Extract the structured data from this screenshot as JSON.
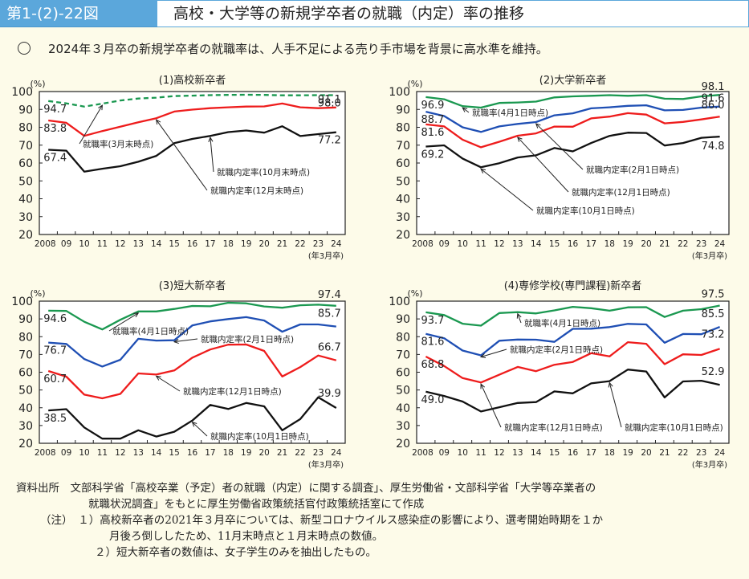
{
  "header": {
    "figure_number": "第1-(2)-22図",
    "title": "高校・大学等の新規学卒者の就職（内定）率の推移"
  },
  "lead": "2024年３月卒の新規学卒者の就職率は、人手不足による売り手市場を背景に高水準を維持。",
  "notes": {
    "source_label": "資料出所",
    "source_line1": "文部科学省「高校卒業（予定）者の就職（内定）に関する調査」、厚生労働省・文部科学省「大学等卒業者の",
    "source_line2": "就職状況調査」をもとに厚生労働省政策統括官付政策統括室にて作成",
    "note_label": "（注）",
    "note1_line1": "１）高校新卒者の2021年３月卒については、新型コロナウイルス感染症の影響により、選考開始時期を１か",
    "note1_line2": "月後ろ倒ししたため、11月末時点と１月末時点の数値。",
    "note2": "２）短大新卒者の数値は、女子学生のみを抽出したもの。"
  },
  "chart_data": [
    {
      "type": "line",
      "title": "(1)高校新卒者",
      "ylabel": "(%)",
      "xlabel": "(年3月卒)",
      "ylim": [
        20,
        100
      ],
      "yticks": [
        20,
        30,
        40,
        50,
        60,
        70,
        80,
        90,
        100
      ],
      "categories": [
        "2008",
        "09",
        "10",
        "11",
        "12",
        "13",
        "14",
        "15",
        "16",
        "17",
        "18",
        "19",
        "20",
        "21",
        "22",
        "23",
        "24"
      ],
      "series": [
        {
          "name": "就職率(3月末時点)",
          "color": "#1a9850",
          "dashed": true,
          "values": [
            94.7,
            93.4,
            91.6,
            93.2,
            95.0,
            96.1,
            96.6,
            97.5,
            97.7,
            98.0,
            98.1,
            98.2,
            98.1,
            97.9,
            97.9,
            98.0,
            98.0
          ],
          "start_label": "94.7",
          "end_label": "98.0"
        },
        {
          "name": "就職内定率(12月末時点)",
          "color": "#ee1c1c",
          "dashed": false,
          "values": [
            83.8,
            82.5,
            75.2,
            77.9,
            80.3,
            82.8,
            85.1,
            88.8,
            89.9,
            90.7,
            91.2,
            91.6,
            91.7,
            93.3,
            91.2,
            90.7,
            91.1
          ],
          "start_label": "83.8",
          "end_label": "91.1"
        },
        {
          "name": "就職内定率(10月末時点)",
          "color": "#111111",
          "dashed": false,
          "values": [
            67.4,
            66.9,
            55.2,
            56.8,
            58.2,
            60.7,
            64.0,
            71.1,
            73.5,
            75.2,
            77.3,
            78.2,
            77.0,
            80.6,
            75.1,
            76.2,
            77.2
          ],
          "start_label": "67.4",
          "end_label": "77.2"
        }
      ],
      "annotations": [
        {
          "text": "就職率(3月末時点)",
          "series": 0,
          "point": 3
        },
        {
          "text": "就職内定率(10月末時点)",
          "series": 2,
          "point": 9
        },
        {
          "text": "就職内定率(12月末時点)",
          "series": 1,
          "point": 6
        }
      ]
    },
    {
      "type": "line",
      "title": "(2)大学新卒者",
      "ylabel": "(%)",
      "xlabel": "(年3月卒)",
      "ylim": [
        20,
        100
      ],
      "yticks": [
        20,
        30,
        40,
        50,
        60,
        70,
        80,
        90,
        100
      ],
      "categories": [
        "2008",
        "09",
        "10",
        "11",
        "12",
        "13",
        "14",
        "15",
        "16",
        "17",
        "18",
        "19",
        "20",
        "21",
        "22",
        "23",
        "24"
      ],
      "series": [
        {
          "name": "就職率(4月1日時点)",
          "color": "#1a9850",
          "dashed": false,
          "values": [
            96.9,
            95.7,
            91.8,
            91.0,
            93.6,
            93.9,
            94.4,
            96.7,
            97.3,
            97.6,
            98.0,
            97.6,
            98.0,
            96.0,
            95.8,
            97.3,
            98.1
          ],
          "start_label": "96.9",
          "end_label": "98.1"
        },
        {
          "name": "就職内定率(2月1日時点)",
          "color": "#1f4fb4",
          "dashed": false,
          "values": [
            88.7,
            86.3,
            80.0,
            77.4,
            80.5,
            81.9,
            82.9,
            86.7,
            87.8,
            90.6,
            91.2,
            92.0,
            92.3,
            89.5,
            89.7,
            91.0,
            91.6
          ],
          "start_label": "88.7",
          "end_label": "91.6"
        },
        {
          "name": "就職内定率(12月1日時点)",
          "color": "#ee1c1c",
          "dashed": false,
          "values": [
            81.6,
            80.5,
            73.1,
            68.8,
            71.9,
            75.3,
            76.6,
            80.4,
            80.3,
            85.0,
            86.0,
            87.9,
            87.1,
            82.2,
            83.0,
            84.4,
            86.0
          ],
          "start_label": "81.6",
          "end_label": "86.0"
        },
        {
          "name": "就職内定率(10月1日時点)",
          "color": "#111111",
          "dashed": false,
          "values": [
            69.2,
            69.9,
            62.5,
            57.6,
            59.9,
            63.1,
            64.3,
            68.4,
            66.5,
            71.2,
            75.2,
            77.0,
            76.8,
            69.8,
            71.2,
            74.1,
            74.8
          ],
          "start_label": "69.2",
          "end_label": "74.8"
        }
      ],
      "annotations": [
        {
          "text": "就職率(4月1日時点)",
          "series": 0,
          "point": 2
        },
        {
          "text": "就職内定率(2月1日時点)",
          "series": 1,
          "point": 6
        },
        {
          "text": "就職内定率(12月1日時点)",
          "series": 2,
          "point": 5
        },
        {
          "text": "就職内定率(10月1日時点)",
          "series": 3,
          "point": 3
        }
      ]
    },
    {
      "type": "line",
      "title": "(3)短大新卒者",
      "ylabel": "(%)",
      "xlabel": "(年3月卒)",
      "ylim": [
        20,
        100
      ],
      "yticks": [
        20,
        30,
        40,
        50,
        60,
        70,
        80,
        90,
        100
      ],
      "categories": [
        "2008",
        "09",
        "10",
        "11",
        "12",
        "13",
        "14",
        "15",
        "16",
        "17",
        "18",
        "19",
        "20",
        "21",
        "22",
        "23",
        "24"
      ],
      "series": [
        {
          "name": "就職率(4月1日時点)",
          "color": "#1a9850",
          "dashed": false,
          "values": [
            94.6,
            94.5,
            88.4,
            84.1,
            89.5,
            94.2,
            94.2,
            95.6,
            97.3,
            97.1,
            99.1,
            98.8,
            97.0,
            96.3,
            97.7,
            98.0,
            97.4
          ],
          "start_label": "94.6",
          "end_label": "97.4"
        },
        {
          "name": "就職内定率(2月1日時点)",
          "color": "#1f4fb4",
          "dashed": false,
          "values": [
            76.7,
            75.9,
            67.4,
            63.2,
            67.0,
            78.8,
            77.8,
            78.0,
            86.3,
            88.6,
            89.9,
            91.0,
            89.1,
            82.8,
            86.9,
            86.9,
            85.7
          ],
          "start_label": "76.7",
          "end_label": "85.7"
        },
        {
          "name": "就職内定率(12月1日時点)",
          "color": "#ee1c1c",
          "dashed": false,
          "values": [
            60.7,
            57.5,
            47.4,
            45.3,
            47.8,
            59.3,
            58.7,
            61.0,
            68.2,
            72.8,
            75.5,
            75.6,
            72.0,
            57.6,
            62.9,
            69.4,
            66.7
          ],
          "start_label": "60.7",
          "end_label": "66.7"
        },
        {
          "name": "就職内定率(10月1日時点)",
          "color": "#111111",
          "dashed": false,
          "values": [
            38.5,
            39.2,
            28.9,
            22.6,
            22.6,
            27.3,
            23.8,
            26.5,
            32.8,
            41.6,
            39.3,
            42.7,
            40.8,
            27.3,
            33.6,
            45.9,
            39.9
          ],
          "start_label": "38.5",
          "end_label": "39.9"
        }
      ],
      "annotations": [
        {
          "text": "就職率(4月1日時点)",
          "series": 0,
          "point": 5
        },
        {
          "text": "就職内定率(2月1日時点)",
          "series": 1,
          "point": 7
        },
        {
          "text": "就職内定率(12月1日時点)",
          "series": 2,
          "point": 6
        },
        {
          "text": "就職内定率(10月1日時点)",
          "series": 3,
          "point": 8
        }
      ]
    },
    {
      "type": "line",
      "title": "(4)専修学校(専門課程)新卒者",
      "ylabel": "(%)",
      "xlabel": "(年3月卒)",
      "ylim": [
        20,
        100
      ],
      "yticks": [
        20,
        30,
        40,
        50,
        60,
        70,
        80,
        90,
        100
      ],
      "categories": [
        "2008",
        "09",
        "10",
        "11",
        "12",
        "13",
        "14",
        "15",
        "16",
        "17",
        "18",
        "19",
        "20",
        "21",
        "22",
        "23",
        "24"
      ],
      "series": [
        {
          "name": "就職率(4月1日時点)",
          "color": "#1a9850",
          "dashed": false,
          "values": [
            93.7,
            92.2,
            87.3,
            86.2,
            93.3,
            93.8,
            93.1,
            94.8,
            96.8,
            96.0,
            94.6,
            96.5,
            96.6,
            91.1,
            94.6,
            95.5,
            97.5
          ],
          "start_label": "93.7",
          "end_label": "97.5"
        },
        {
          "name": "就職内定率(2月1日時点)",
          "color": "#1f4fb4",
          "dashed": false,
          "values": [
            81.6,
            79.1,
            72.2,
            69.5,
            77.7,
            78.4,
            78.3,
            77.1,
            84.4,
            84.5,
            85.4,
            87.2,
            86.9,
            76.6,
            81.5,
            81.4,
            85.5
          ],
          "start_label": "81.6",
          "end_label": "85.5"
        },
        {
          "name": "就職内定率(12月1日時点)",
          "color": "#ee1c1c",
          "dashed": false,
          "values": [
            68.8,
            63.5,
            56.7,
            54.2,
            58.6,
            63.0,
            60.6,
            64.2,
            65.8,
            70.7,
            68.9,
            76.9,
            76.0,
            64.5,
            70.1,
            69.7,
            73.2
          ],
          "start_label": "68.8",
          "end_label": "73.2"
        },
        {
          "name": "就職内定率(10月1日時点)",
          "color": "#111111",
          "dashed": false,
          "values": [
            49.0,
            46.6,
            43.5,
            37.9,
            40.3,
            42.7,
            43.2,
            49.2,
            48.1,
            53.7,
            55.0,
            61.5,
            60.4,
            45.8,
            54.8,
            55.2,
            52.9
          ],
          "start_label": "49.0",
          "end_label": "52.9"
        }
      ],
      "annotations": [
        {
          "text": "就職率(4月1日時点)",
          "series": 0,
          "point": 5
        },
        {
          "text": "就職内定率(2月1日時点)",
          "series": 1,
          "point": 3
        },
        {
          "text": "就職内定率(12月1日時点)",
          "series": 2,
          "point": 3
        },
        {
          "text": "就職内定率(10月1日時点)",
          "series": 3,
          "point": 10
        }
      ]
    }
  ]
}
